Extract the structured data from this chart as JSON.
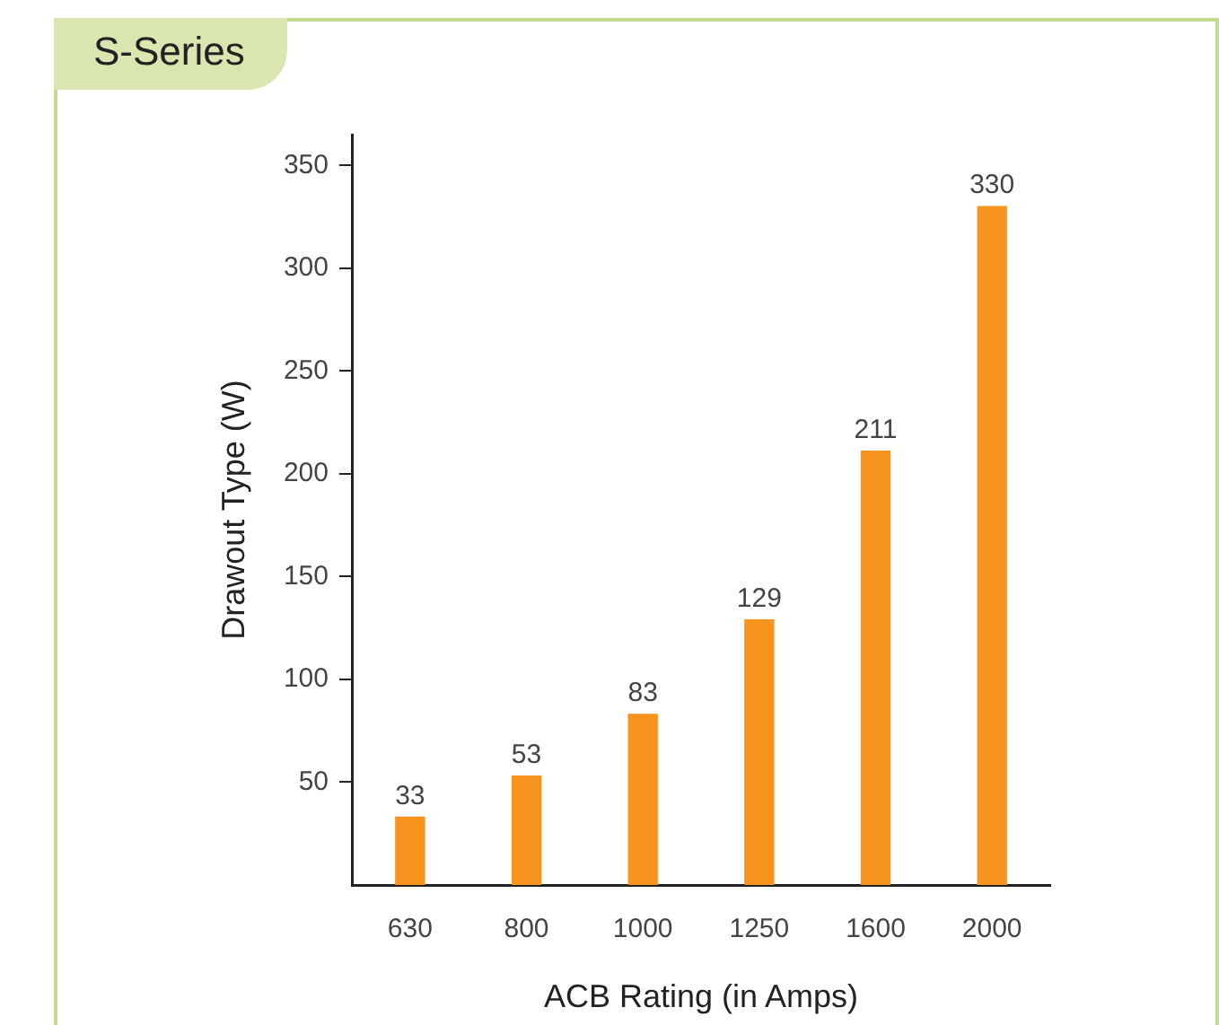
{
  "chart_data": {
    "type": "bar",
    "title": "S-Series",
    "xlabel": "ACB Rating (in Amps)",
    "ylabel": "Drawout Type (W)",
    "categories": [
      "630",
      "800",
      "1000",
      "1250",
      "1600",
      "2000"
    ],
    "values": [
      33,
      53,
      83,
      129,
      211,
      330
    ],
    "color": "#f7941d",
    "ylim": [
      0,
      365
    ],
    "yticks": [
      50,
      100,
      150,
      200,
      250,
      300,
      350
    ],
    "grid": false,
    "data_labels": true
  }
}
